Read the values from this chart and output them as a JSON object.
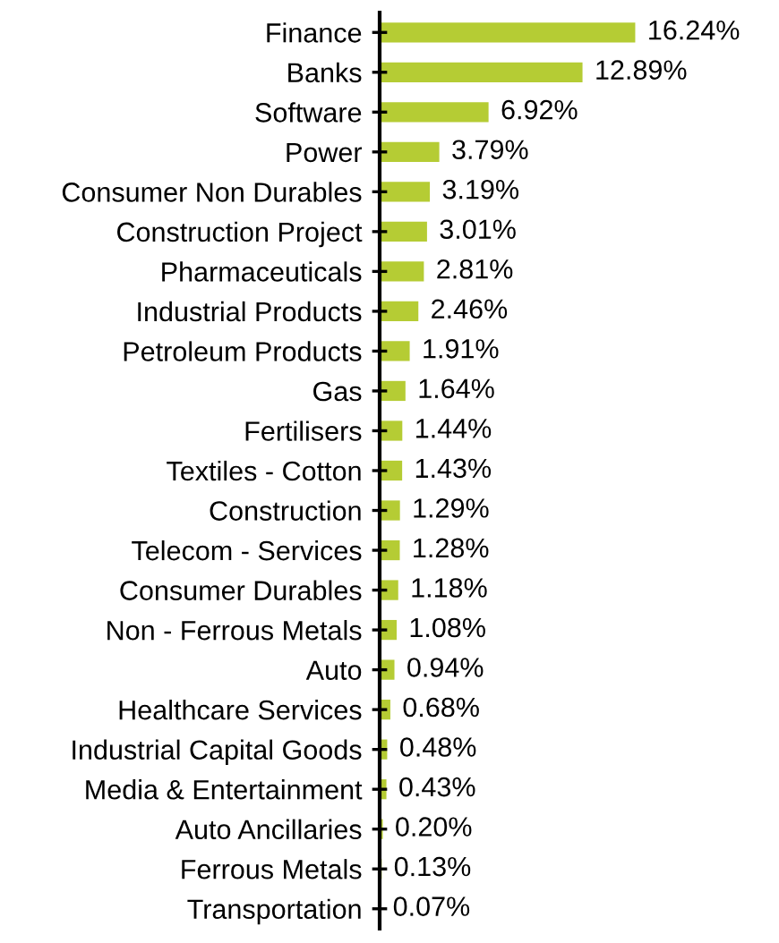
{
  "chart_data": {
    "type": "bar",
    "orientation": "horizontal",
    "categories": [
      "Finance",
      "Banks",
      "Software",
      "Power",
      "Consumer Non Durables",
      "Construction Project",
      "Pharmaceuticals",
      "Industrial Products",
      "Petroleum Products",
      "Gas",
      "Fertilisers",
      "Textiles - Cotton",
      "Construction",
      "Telecom - Services",
      "Consumer Durables",
      "Non - Ferrous Metals",
      "Auto",
      "Healthcare Services",
      "Industrial Capital Goods",
      "Media & Entertainment",
      "Auto Ancillaries",
      "Ferrous Metals",
      "Transportation"
    ],
    "values": [
      16.24,
      12.89,
      6.92,
      3.79,
      3.19,
      3.01,
      2.81,
      2.46,
      1.91,
      1.64,
      1.44,
      1.43,
      1.29,
      1.28,
      1.18,
      1.08,
      0.94,
      0.68,
      0.48,
      0.43,
      0.2,
      0.13,
      0.07
    ],
    "value_labels": [
      "16.24%",
      "12.89%",
      "6.92%",
      "3.79%",
      "3.19%",
      "3.01%",
      "2.81%",
      "2.46%",
      "1.91%",
      "1.64%",
      "1.44%",
      "1.43%",
      "1.29%",
      "1.28%",
      "1.18%",
      "1.08%",
      "0.94%",
      "0.68%",
      "0.48%",
      "0.43%",
      "0.20%",
      "0.13%",
      "0.07%"
    ],
    "color": "#b5cc34",
    "grid": false,
    "legend": false
  }
}
